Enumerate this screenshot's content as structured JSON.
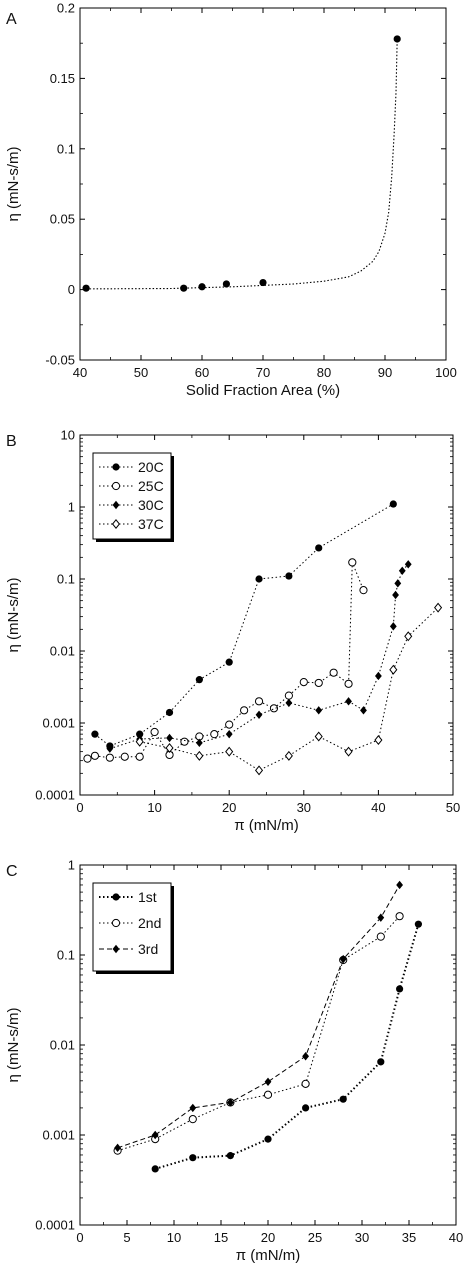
{
  "chart_data": [
    {
      "panel_label": "A",
      "type": "scatter",
      "xlabel": "Solid Fraction Area (%)",
      "ylabel": "η (mN-s/m)",
      "xlim": [
        40,
        100
      ],
      "ylim": [
        -0.05,
        0.2
      ],
      "yscale": "linear",
      "xticks": [
        "40",
        "50",
        "60",
        "70",
        "80",
        "90",
        "100"
      ],
      "yticks": [
        "-0.05",
        "0",
        "0.05",
        "0.1",
        "0.15",
        "0.2"
      ],
      "series": [
        {
          "marker": "filled-circle",
          "points": [
            [
              41,
              0.001
            ],
            [
              57,
              0.001
            ],
            [
              60,
              0.002
            ],
            [
              64,
              0.004
            ],
            [
              70,
              0.005
            ],
            [
              92,
              0.178
            ]
          ]
        }
      ],
      "fit_curve": [
        [
          41,
          0.0005
        ],
        [
          55,
          0.0008
        ],
        [
          65,
          0.002
        ],
        [
          75,
          0.004
        ],
        [
          80,
          0.006
        ],
        [
          84,
          0.009
        ],
        [
          86,
          0.013
        ],
        [
          88,
          0.02
        ],
        [
          89,
          0.027
        ],
        [
          90,
          0.04
        ],
        [
          90.6,
          0.055
        ],
        [
          91.1,
          0.08
        ],
        [
          91.5,
          0.11
        ],
        [
          91.8,
          0.14
        ],
        [
          92,
          0.178
        ]
      ]
    },
    {
      "panel_label": "B",
      "type": "line",
      "xlabel": "π (mN/m)",
      "ylabel": "η (mN-s/m)",
      "xlim": [
        0,
        50
      ],
      "ylim": [
        0.0001,
        10
      ],
      "yscale": "log",
      "xticks": [
        "0",
        "10",
        "20",
        "30",
        "40",
        "50"
      ],
      "yticks": [
        "0.0001",
        "0.001",
        "0.01",
        "0.1",
        "1",
        "10"
      ],
      "legend_position": "top-left",
      "series": [
        {
          "name": "20C",
          "marker": "filled-circle",
          "points": [
            [
              2,
              0.0007
            ],
            [
              4,
              0.00048
            ],
            [
              8,
              0.0007
            ],
            [
              12,
              0.0014
            ],
            [
              16,
              0.004
            ],
            [
              20,
              0.007
            ],
            [
              24,
              0.1
            ],
            [
              28,
              0.11
            ],
            [
              32,
              0.27
            ],
            [
              42,
              1.1
            ]
          ]
        },
        {
          "name": "25C",
          "marker": "open-circle",
          "points": [
            [
              1,
              0.00032
            ],
            [
              2,
              0.00035
            ],
            [
              4,
              0.00033
            ],
            [
              6,
              0.00034
            ],
            [
              8,
              0.00034
            ],
            [
              10,
              0.00075
            ],
            [
              12,
              0.00036
            ],
            [
              14,
              0.00055
            ],
            [
              16,
              0.00065
            ],
            [
              18,
              0.0007
            ],
            [
              20,
              0.00095
            ],
            [
              22,
              0.0015
            ],
            [
              24,
              0.002
            ],
            [
              26,
              0.0016
            ],
            [
              28,
              0.0024
            ],
            [
              30,
              0.0037
            ],
            [
              32,
              0.0036
            ],
            [
              34,
              0.005
            ],
            [
              36,
              0.0035
            ],
            [
              36.5,
              0.17
            ],
            [
              38,
              0.07
            ]
          ]
        },
        {
          "name": "30C",
          "marker": "filled-diamond",
          "points": [
            [
              4,
              0.00044
            ],
            [
              8,
              0.0006
            ],
            [
              12,
              0.00062
            ],
            [
              16,
              0.00053
            ],
            [
              20,
              0.0007
            ],
            [
              24,
              0.0013
            ],
            [
              28,
              0.0019
            ],
            [
              32,
              0.0015
            ],
            [
              36,
              0.002
            ],
            [
              38,
              0.0015
            ],
            [
              40,
              0.0045
            ],
            [
              42,
              0.022
            ],
            [
              42.3,
              0.06
            ],
            [
              42.6,
              0.087
            ],
            [
              43.2,
              0.13
            ],
            [
              44,
              0.16
            ]
          ]
        },
        {
          "name": "37C",
          "marker": "open-diamond",
          "points": [
            [
              8,
              0.00055
            ],
            [
              12,
              0.00045
            ],
            [
              16,
              0.00035
            ],
            [
              20,
              0.0004
            ],
            [
              24,
              0.00022
            ],
            [
              28,
              0.00035
            ],
            [
              32,
              0.00065
            ],
            [
              36,
              0.0004
            ],
            [
              40,
              0.00058
            ],
            [
              42,
              0.0055
            ],
            [
              44,
              0.016
            ],
            [
              48,
              0.04
            ]
          ]
        }
      ]
    },
    {
      "panel_label": "C",
      "type": "line",
      "xlabel": "π (mN/m)",
      "ylabel": "η (mN-s/m)",
      "xlim": [
        0,
        40
      ],
      "ylim": [
        0.0001,
        1
      ],
      "yscale": "log",
      "xticks": [
        "0",
        "5",
        "10",
        "15",
        "20",
        "25",
        "30",
        "35",
        "40"
      ],
      "yticks": [
        "0.0001",
        "0.001",
        "0.01",
        "0.1",
        "1"
      ],
      "legend_position": "top-left",
      "series": [
        {
          "name": "1st",
          "marker": "filled-circle",
          "line": "dotted-bold",
          "points": [
            [
              8,
              0.00042
            ],
            [
              12,
              0.00056
            ],
            [
              16,
              0.00059
            ],
            [
              20,
              0.0009
            ],
            [
              24,
              0.002
            ],
            [
              28,
              0.0025
            ],
            [
              32,
              0.0065
            ],
            [
              34,
              0.042
            ],
            [
              36,
              0.22
            ]
          ]
        },
        {
          "name": "2nd",
          "marker": "open-circle",
          "line": "dotted",
          "points": [
            [
              4,
              0.00067
            ],
            [
              8,
              0.0009
            ],
            [
              12,
              0.0015
            ],
            [
              16,
              0.0023
            ],
            [
              20,
              0.0028
            ],
            [
              24,
              0.0037
            ],
            [
              28,
              0.088
            ],
            [
              32,
              0.16
            ],
            [
              34,
              0.27
            ]
          ]
        },
        {
          "name": "3rd",
          "marker": "filled-diamond",
          "line": "dashed",
          "points": [
            [
              4,
              0.00072
            ],
            [
              8,
              0.001
            ],
            [
              12,
              0.002
            ],
            [
              16,
              0.0023
            ],
            [
              20,
              0.0039
            ],
            [
              24,
              0.0075
            ],
            [
              28,
              0.09
            ],
            [
              32,
              0.26
            ],
            [
              34,
              0.6
            ]
          ]
        }
      ]
    }
  ]
}
